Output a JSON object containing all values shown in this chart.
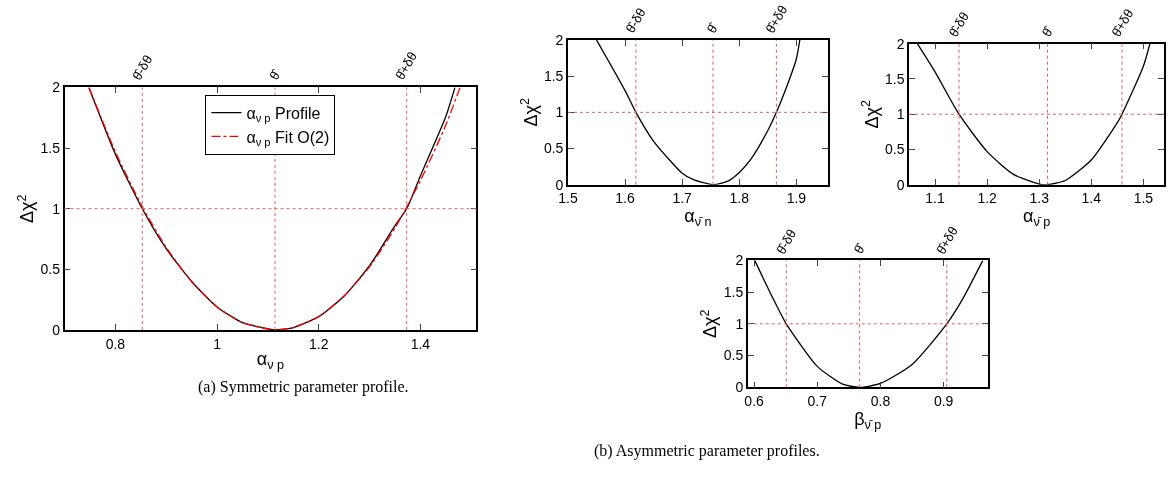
{
  "chart_data": [
    {
      "type": "line",
      "xlabel": "α$_{ν p}$",
      "ylabel": "Δχ$^{2}$",
      "xlim": [
        0.7,
        1.51
      ],
      "xticks": [
        0.8,
        1,
        1.2,
        1.4
      ],
      "ylim": [
        0,
        2
      ],
      "yticks": [
        0,
        0.5,
        1,
        1.5,
        2
      ],
      "legend": "top",
      "series": [
        {
          "name": "α$_{ν p}$ Profile",
          "color": "#000000",
          "line_style": "solid",
          "x": [
            0.748,
            0.8,
            0.853,
            0.9,
            0.95,
            1.0,
            1.05,
            1.1,
            1.115,
            1.15,
            1.2,
            1.25,
            1.3,
            1.35,
            1.373,
            1.4,
            1.45,
            1.468
          ],
          "values": [
            2.0,
            1.45,
            1.0,
            0.67,
            0.4,
            0.19,
            0.06,
            0.01,
            0,
            0.02,
            0.11,
            0.28,
            0.53,
            0.86,
            1.0,
            1.27,
            1.76,
            2.0
          ]
        },
        {
          "name": "α$_{ν p}$ Fit O(2)",
          "color": "#ff0000",
          "line_style": "dashed",
          "x": [
            0.748,
            0.8,
            0.85,
            0.9,
            0.95,
            1.0,
            1.05,
            1.113,
            1.15,
            1.2,
            1.25,
            1.3,
            1.35,
            1.4,
            1.45,
            1.478
          ],
          "values": [
            2.0,
            1.47,
            1.04,
            0.68,
            0.4,
            0.19,
            0.06,
            0,
            0.02,
            0.11,
            0.28,
            0.52,
            0.84,
            1.23,
            1.69,
            2.0
          ]
        }
      ],
      "ref_lines": [
        {
          "axis": "x",
          "value": 0.853,
          "label": "θ̂-δθ",
          "color": "#e06060",
          "line_style": "dotted"
        },
        {
          "axis": "x",
          "value": 1.114,
          "label": "θ̂",
          "color": "#e06060",
          "line_style": "dotted"
        },
        {
          "axis": "x",
          "value": 1.373,
          "label": "θ̂+δθ",
          "color": "#e06060",
          "line_style": "dotted"
        },
        {
          "axis": "y",
          "value": 1,
          "color": "#e06060",
          "line_style": "dotted"
        }
      ],
      "annotations": [
        "(a) Symmetric parameter profile."
      ]
    },
    {
      "type": "line",
      "xlabel": "α$_{ν̄ n}$",
      "ylabel": "Δχ$^{2}$",
      "xlim": [
        1.5,
        1.955
      ],
      "xticks": [
        1.5,
        1.6,
        1.7,
        1.8,
        1.9
      ],
      "ylim": [
        0,
        2
      ],
      "yticks": [
        0,
        0.5,
        1,
        1.5,
        2
      ],
      "series": [
        {
          "color": "#000000",
          "line_style": "solid",
          "x": [
            1.55,
            1.6,
            1.619,
            1.65,
            1.7,
            1.72,
            1.755,
            1.78,
            1.8,
            1.82,
            1.85,
            1.865,
            1.88,
            1.9,
            1.906
          ],
          "values": [
            2.0,
            1.3,
            1.0,
            0.6,
            0.16,
            0.07,
            0,
            0.05,
            0.17,
            0.35,
            0.75,
            1.0,
            1.29,
            1.74,
            2.0
          ]
        }
      ],
      "ref_lines": [
        {
          "axis": "x",
          "value": 1.619,
          "label": "θ̂-δθ",
          "color": "#e06060",
          "line_style": "dotted"
        },
        {
          "axis": "x",
          "value": 1.754,
          "label": "θ̂",
          "color": "#e06060",
          "line_style": "dotted"
        },
        {
          "axis": "x",
          "value": 1.865,
          "label": "θ̂+δθ",
          "color": "#e06060",
          "line_style": "dotted"
        },
        {
          "axis": "y",
          "value": 1,
          "color": "#e06060",
          "line_style": "dotted"
        }
      ]
    },
    {
      "type": "line",
      "xlabel": "α$_{ν̄ p}$",
      "ylabel": "Δχ$^{2}$",
      "xlim": [
        1.05,
        1.54
      ],
      "xticks": [
        1.1,
        1.2,
        1.3,
        1.4,
        1.5
      ],
      "ylim": [
        0,
        2
      ],
      "yticks": [
        0,
        0.5,
        1,
        1.5,
        2
      ],
      "series": [
        {
          "color": "#000000",
          "line_style": "solid",
          "x": [
            1.066,
            1.1,
            1.146,
            1.2,
            1.25,
            1.3,
            1.316,
            1.35,
            1.4,
            1.45,
            1.459,
            1.5,
            1.5125
          ],
          "values": [
            2.0,
            1.6,
            1.0,
            0.47,
            0.15,
            0.01,
            0,
            0.06,
            0.35,
            0.88,
            1.0,
            1.68,
            2.0
          ]
        }
      ],
      "ref_lines": [
        {
          "axis": "x",
          "value": 1.146,
          "label": "θ̂-δθ",
          "color": "#e06060",
          "line_style": "dotted"
        },
        {
          "axis": "x",
          "value": 1.316,
          "label": "θ̂",
          "color": "#e06060",
          "line_style": "dotted"
        },
        {
          "axis": "x",
          "value": 1.459,
          "label": "θ̂+δθ",
          "color": "#e06060",
          "line_style": "dotted"
        },
        {
          "axis": "y",
          "value": 1,
          "color": "#e06060",
          "line_style": "dotted"
        }
      ]
    },
    {
      "type": "line",
      "xlabel": "β$_{ν̄ p}$",
      "ylabel": "Δχ$^{2}$",
      "xlim": [
        0.59,
        0.97
      ],
      "xticks": [
        0.6,
        0.7,
        0.8,
        0.9
      ],
      "ylim": [
        0,
        2
      ],
      "yticks": [
        0,
        0.5,
        1,
        1.5,
        2
      ],
      "series": [
        {
          "color": "#000000",
          "line_style": "solid",
          "x": [
            0.601,
            0.63,
            0.651,
            0.7,
            0.74,
            0.767,
            0.8,
            0.85,
            0.905,
            0.93,
            0.962
          ],
          "values": [
            2.0,
            1.4,
            1.0,
            0.33,
            0.05,
            0,
            0.06,
            0.36,
            1.0,
            1.39,
            2.0
          ]
        }
      ],
      "ref_lines": [
        {
          "axis": "x",
          "value": 0.651,
          "label": "θ̂-δθ",
          "color": "#e06060",
          "line_style": "dotted"
        },
        {
          "axis": "x",
          "value": 0.767,
          "label": "θ̂",
          "color": "#e06060",
          "line_style": "dotted"
        },
        {
          "axis": "x",
          "value": 0.905,
          "label": "θ̂+δθ",
          "color": "#e06060",
          "line_style": "dotted"
        },
        {
          "axis": "y",
          "value": 1,
          "color": "#e06060",
          "line_style": "dotted"
        }
      ],
      "annotations": [
        "(b) Asymmetric parameter profiles."
      ]
    }
  ]
}
